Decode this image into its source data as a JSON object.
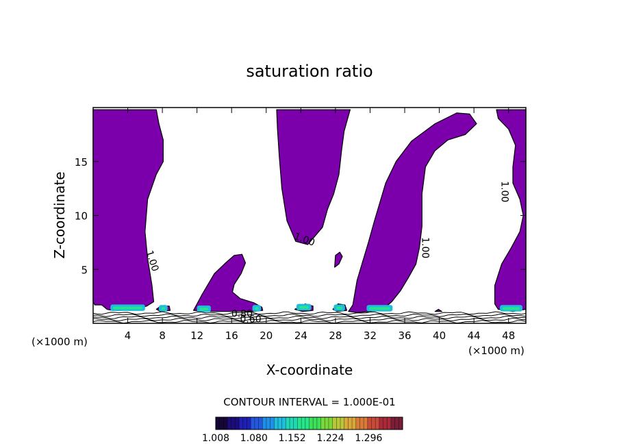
{
  "chart_data": {
    "type": "contour",
    "title": "saturation ratio",
    "xlabel": "X-coordinate",
    "ylabel": "Z-coordinate",
    "x_unit_label": "(×1000 m)",
    "xlim": [
      0,
      50
    ],
    "ylim": [
      0,
      20
    ],
    "x_ticks": [
      4,
      8,
      12,
      16,
      20,
      24,
      28,
      32,
      36,
      40,
      44,
      48
    ],
    "y_ticks": [
      5,
      10,
      15
    ],
    "contour_interval_text": "CONTOUR INTERVAL = 1.000E-01",
    "contour_labels": [
      {
        "text": "1.00",
        "x": 6.5,
        "z": 5.7,
        "angle": 72
      },
      {
        "text": "1.00",
        "x": 24.3,
        "z": 7.5,
        "angle": 20
      },
      {
        "text": "1.00",
        "x": 38.0,
        "z": 7.0,
        "angle": 90
      },
      {
        "text": "1.00",
        "x": 47.2,
        "z": 12.2,
        "angle": 90
      },
      {
        "text": "0.80",
        "x": 17.2,
        "z": 0.6,
        "angle": 0
      },
      {
        "text": "0.60",
        "x": 18.2,
        "z": 0.1,
        "angle": 0
      }
    ],
    "supersaturated_regions": [
      {
        "name": "left column",
        "outline": [
          [
            0,
            19.8
          ],
          [
            7.3,
            19.8
          ],
          [
            7.6,
            18.5
          ],
          [
            8.1,
            17.0
          ],
          [
            8.1,
            15.0
          ],
          [
            7.3,
            13.8
          ],
          [
            6.3,
            11.5
          ],
          [
            6.0,
            8.5
          ],
          [
            6.3,
            6.0
          ],
          [
            6.8,
            3.5
          ],
          [
            7.0,
            2.0
          ],
          [
            6.2,
            1.6
          ],
          [
            5.0,
            1.3
          ],
          [
            3.0,
            1.2
          ],
          [
            2.2,
            1.2
          ],
          [
            1.6,
            1.3
          ],
          [
            1.0,
            1.7
          ],
          [
            0.2,
            1.7
          ],
          [
            0,
            2.0
          ]
        ]
      },
      {
        "name": "middle column",
        "outline": [
          [
            21.2,
            19.8
          ],
          [
            29.7,
            19.8
          ],
          [
            29.0,
            17.8
          ],
          [
            28.7,
            16.0
          ],
          [
            28.4,
            13.8
          ],
          [
            27.8,
            12.0
          ],
          [
            27.1,
            10.6
          ],
          [
            26.5,
            8.9
          ],
          [
            24.8,
            7.3
          ],
          [
            23.4,
            7.6
          ],
          [
            22.4,
            9.5
          ],
          [
            21.8,
            12.5
          ],
          [
            21.5,
            15.5
          ],
          [
            21.3,
            18.0
          ]
        ]
      },
      {
        "name": "central tower",
        "outline": [
          [
            29.5,
            1.1
          ],
          [
            30.0,
            1.7
          ],
          [
            30.5,
            4.0
          ],
          [
            31.8,
            7.5
          ],
          [
            32.5,
            9.5
          ],
          [
            33.8,
            13.0
          ],
          [
            35.0,
            15.0
          ],
          [
            36.8,
            16.9
          ],
          [
            39.5,
            18.5
          ],
          [
            42.0,
            19.5
          ],
          [
            43.5,
            19.4
          ],
          [
            44.3,
            18.5
          ],
          [
            43.0,
            17.5
          ],
          [
            41.0,
            17.0
          ],
          [
            39.5,
            16.0
          ],
          [
            38.4,
            14.5
          ],
          [
            38.0,
            12.0
          ],
          [
            38.0,
            9.0
          ],
          [
            37.7,
            7.0
          ],
          [
            37.3,
            5.5
          ],
          [
            36.4,
            4.2
          ],
          [
            35.5,
            3.0
          ],
          [
            34.5,
            2.0
          ],
          [
            33.5,
            1.3
          ],
          [
            32.0,
            1.1
          ],
          [
            30.5,
            1.0
          ]
        ]
      },
      {
        "name": "right column",
        "outline": [
          [
            46.6,
            19.8
          ],
          [
            50,
            19.8
          ],
          [
            50,
            1.3
          ],
          [
            48.5,
            1.1
          ],
          [
            46.8,
            1.3
          ],
          [
            46.4,
            1.8
          ],
          [
            46.4,
            3.5
          ],
          [
            47.2,
            5.5
          ],
          [
            48.3,
            7.0
          ],
          [
            49.3,
            8.5
          ],
          [
            49.7,
            10.0
          ],
          [
            49.3,
            11.5
          ],
          [
            48.5,
            13.0
          ],
          [
            48.5,
            14.5
          ],
          [
            48.8,
            16.5
          ],
          [
            48.0,
            18.0
          ],
          [
            46.8,
            19.0
          ]
        ]
      },
      {
        "name": "cloud 12-20",
        "outline": [
          [
            11.6,
            1.2
          ],
          [
            12.6,
            2.7
          ],
          [
            14.0,
            4.6
          ],
          [
            15.3,
            5.6
          ],
          [
            16.3,
            6.3
          ],
          [
            17.2,
            6.4
          ],
          [
            17.6,
            5.6
          ],
          [
            17.1,
            4.6
          ],
          [
            16.3,
            3.6
          ],
          [
            16.1,
            2.9
          ],
          [
            17.0,
            2.3
          ],
          [
            18.6,
            1.9
          ],
          [
            19.5,
            1.5
          ],
          [
            19.6,
            1.2
          ],
          [
            18.5,
            1.1
          ],
          [
            16.0,
            1.1
          ],
          [
            13.5,
            1.1
          ]
        ]
      },
      {
        "name": "small blob 28",
        "outline": [
          [
            27.9,
            5.2
          ],
          [
            28.4,
            5.5
          ],
          [
            28.8,
            6.2
          ],
          [
            28.5,
            6.6
          ],
          [
            28.0,
            6.3
          ]
        ]
      },
      {
        "name": "blob 23-25",
        "outline": [
          [
            23.3,
            1.3
          ],
          [
            24.5,
            1.8
          ],
          [
            25.4,
            1.6
          ],
          [
            25.4,
            1.2
          ],
          [
            24.2,
            1.1
          ]
        ]
      },
      {
        "name": "blob 27-29",
        "outline": [
          [
            27.7,
            1.3
          ],
          [
            28.3,
            1.8
          ],
          [
            29.1,
            1.7
          ],
          [
            29.3,
            1.2
          ],
          [
            28.2,
            1.1
          ]
        ]
      },
      {
        "name": "blob 7-9",
        "outline": [
          [
            7.3,
            1.3
          ],
          [
            7.8,
            1.6
          ],
          [
            8.8,
            1.6
          ],
          [
            8.9,
            1.2
          ],
          [
            7.8,
            1.1
          ]
        ]
      },
      {
        "name": "blob 39-40",
        "outline": [
          [
            39.5,
            1.1
          ],
          [
            39.9,
            1.3
          ],
          [
            40.3,
            1.1
          ]
        ]
      }
    ],
    "near_surface_isolines_z": [
      0.15,
      0.35,
      0.55,
      0.75,
      0.95
    ],
    "colorbar": {
      "min": 1.008,
      "max": 1.36,
      "tick_labels": [
        "1.008",
        "1.080",
        "1.152",
        "1.224",
        "1.296"
      ],
      "colors": [
        "#160638",
        "#1b0c7a",
        "#1f1fb4",
        "#2358dc",
        "#1f8ee6",
        "#1fbddc",
        "#1fd8b4",
        "#25e68a",
        "#3ce05a",
        "#7ad83a",
        "#b8c83a",
        "#d8a83a",
        "#d87a38",
        "#c84a38",
        "#a82a38",
        "#7a1e38"
      ]
    },
    "colors": {
      "supersaturated_fill": "#7b00ab",
      "isoline": "#000000",
      "frame": "#000000",
      "background": "#ffffff"
    }
  }
}
